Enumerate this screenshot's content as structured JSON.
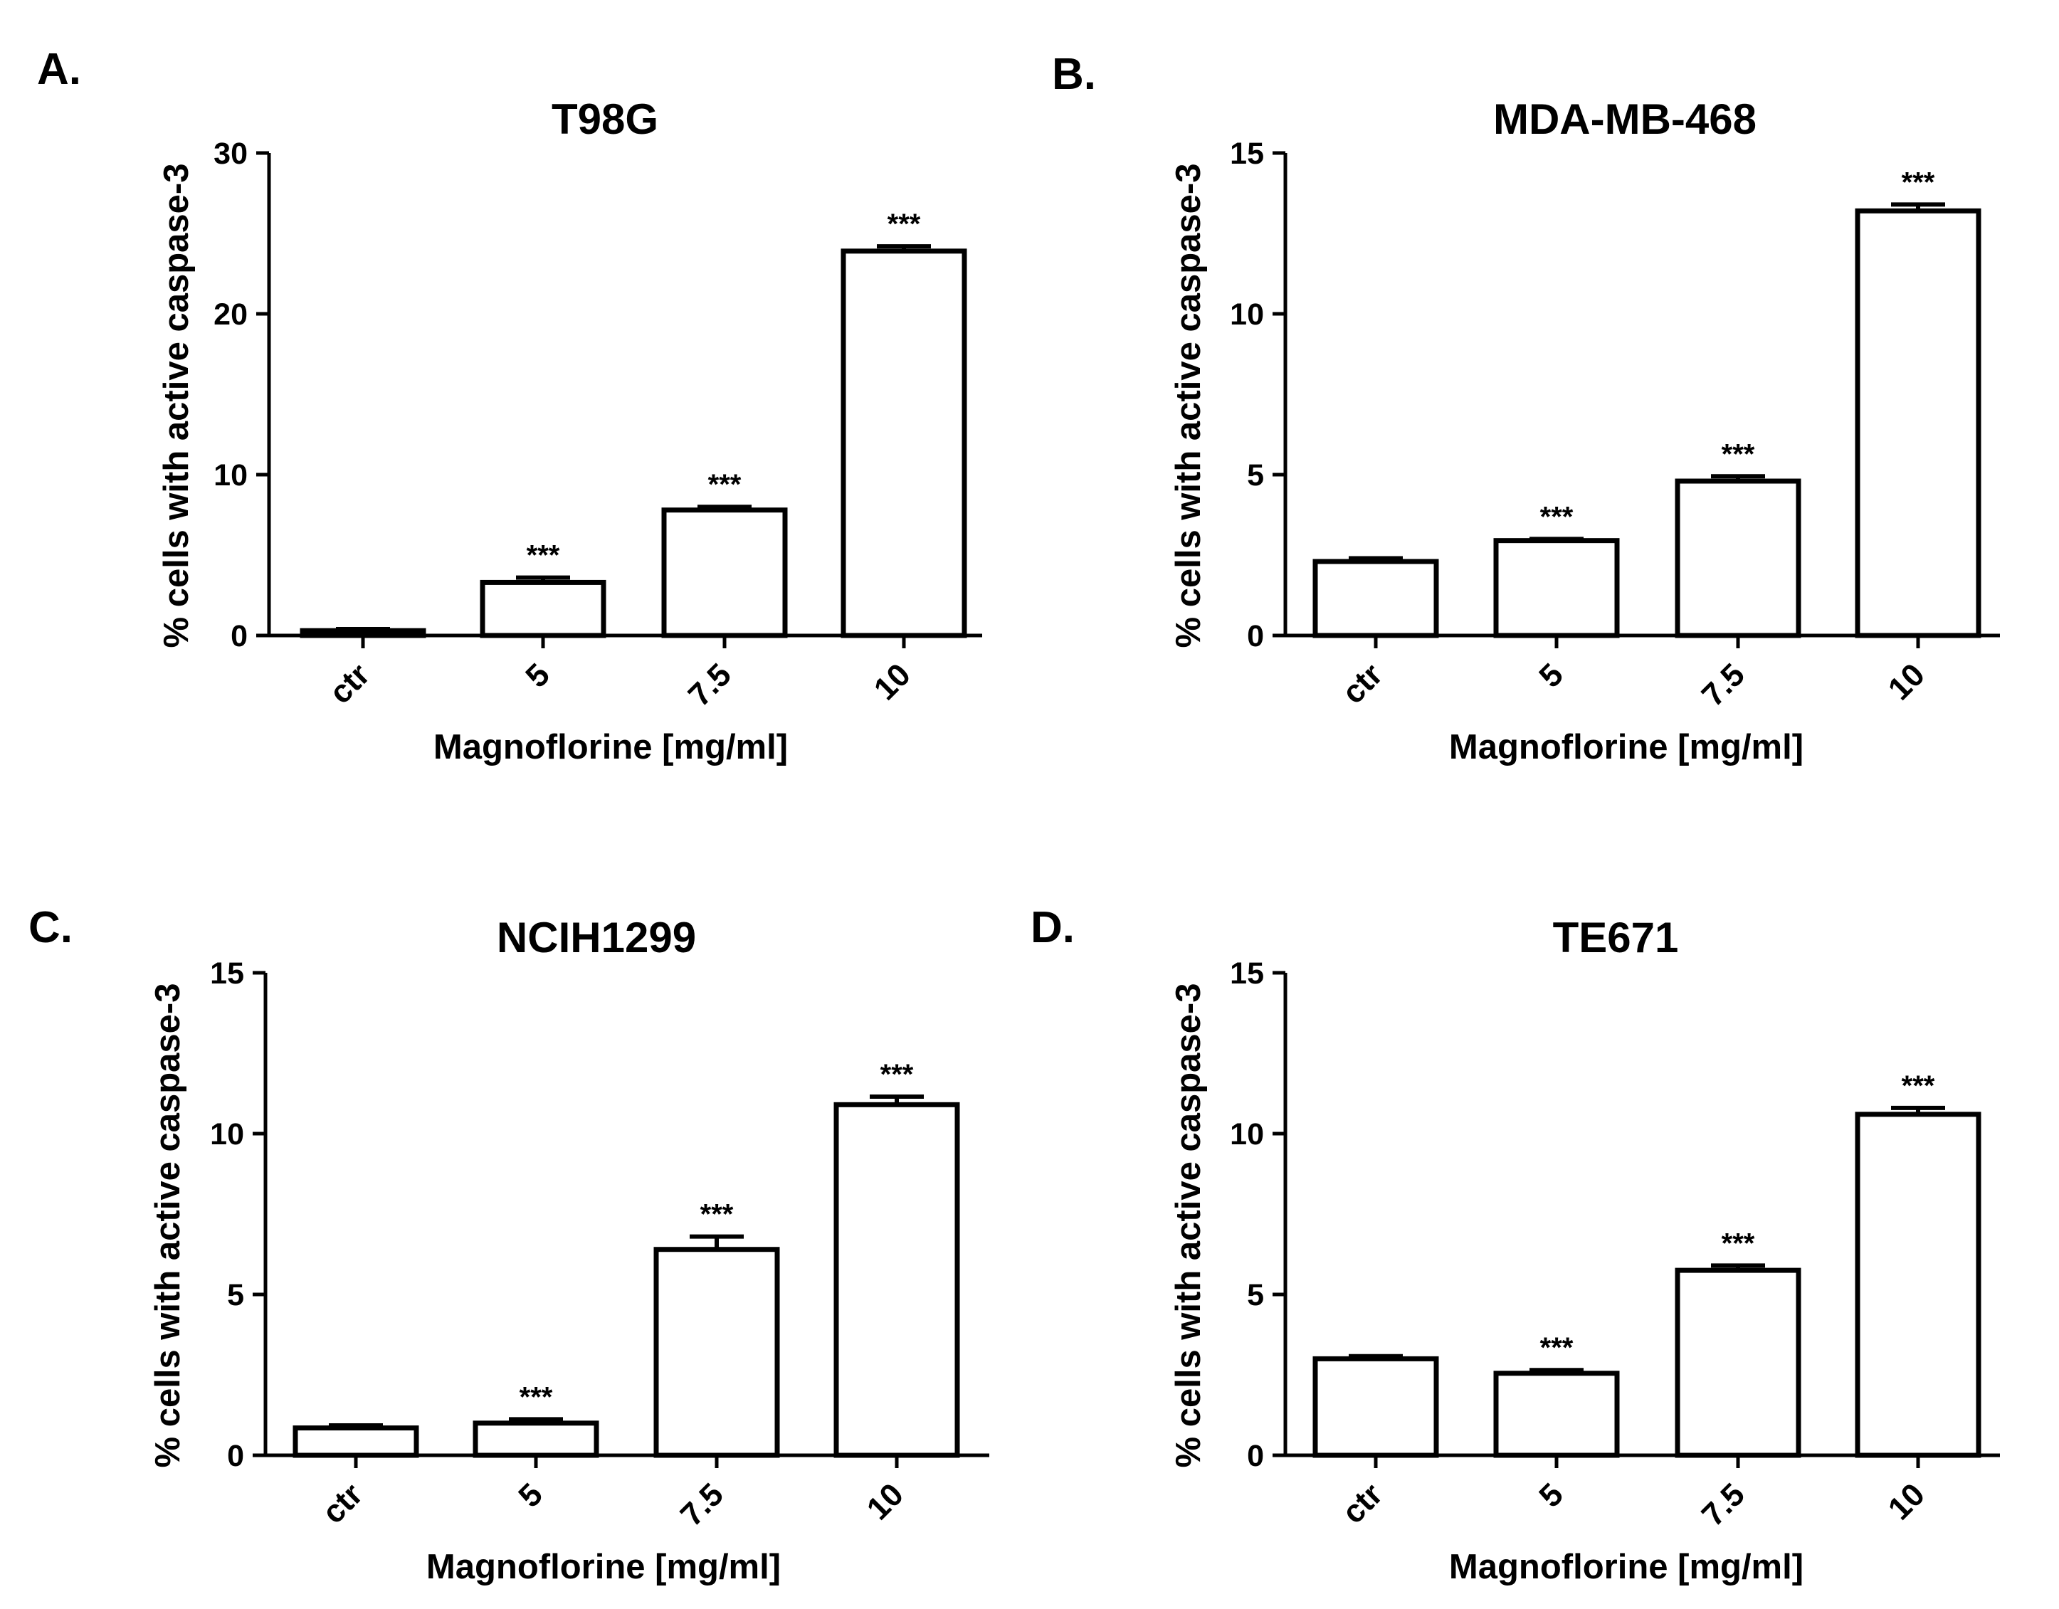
{
  "chart_data": [
    {
      "panel": "A.",
      "type": "bar",
      "title": "T98G",
      "xlabel": "Magnoflorine [mg/ml]",
      "ylabel": "% cells with active caspase-3",
      "categories": [
        "ctr",
        "5",
        "7.5",
        "10"
      ],
      "values": [
        0.3,
        3.3,
        7.8,
        23.9
      ],
      "errors": [
        0.1,
        0.3,
        0.2,
        0.3
      ],
      "significance": [
        "",
        "***",
        "***",
        "***"
      ],
      "ylim": [
        0,
        30
      ],
      "yticks": [
        0,
        10,
        20,
        30
      ]
    },
    {
      "panel": "B.",
      "type": "bar",
      "title": "MDA-MB-468",
      "xlabel": "Magnoflorine [mg/ml]",
      "ylabel": "% cells with active caspase-3",
      "categories": [
        "ctr",
        "5",
        "7.5",
        "10"
      ],
      "values": [
        2.3,
        2.95,
        4.8,
        13.2
      ],
      "errors": [
        0.1,
        0.05,
        0.15,
        0.2
      ],
      "significance": [
        "",
        "***",
        "***",
        "***"
      ],
      "ylim": [
        0,
        15
      ],
      "yticks": [
        0,
        5,
        10,
        15
      ]
    },
    {
      "panel": "C.",
      "type": "bar",
      "title": "NCIH1299",
      "xlabel": "Magnoflorine [mg/ml]",
      "ylabel": "% cells with active caspase-3",
      "categories": [
        "ctr",
        "5",
        "7.5",
        "10"
      ],
      "values": [
        0.85,
        1.0,
        6.4,
        10.9
      ],
      "errors": [
        0.08,
        0.12,
        0.4,
        0.25
      ],
      "significance": [
        "",
        "***",
        "***",
        "***"
      ],
      "ylim": [
        0,
        15
      ],
      "yticks": [
        0,
        5,
        10,
        15
      ]
    },
    {
      "panel": "D.",
      "type": "bar",
      "title": "TE671",
      "xlabel": "Magnoflorine [mg/ml]",
      "ylabel": "% cells with active caspase-3",
      "categories": [
        "ctr",
        "5",
        "7.5",
        "10"
      ],
      "values": [
        3.0,
        2.55,
        5.75,
        10.6
      ],
      "errors": [
        0.08,
        0.1,
        0.15,
        0.2
      ],
      "significance": [
        "",
        "***",
        "***",
        "***"
      ],
      "ylim": [
        0,
        15
      ],
      "yticks": [
        0,
        5,
        10,
        15
      ]
    }
  ]
}
